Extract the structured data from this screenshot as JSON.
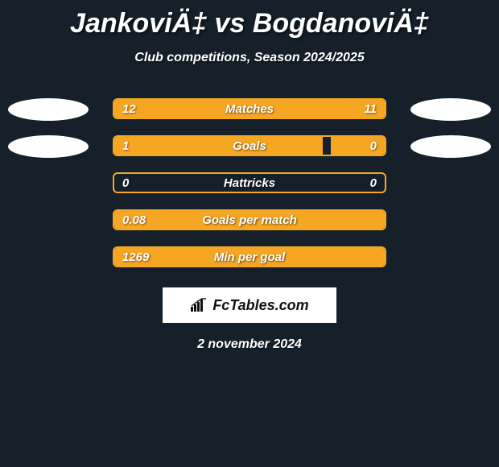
{
  "title": "JankoviÄ‡ vs BogdanoviÄ‡",
  "subtitle": "Club competitions, Season 2024/2025",
  "theme": {
    "background": "#15202b",
    "accent": "#f5a623",
    "text": "#ffffff",
    "ellipse": "#ffffff",
    "logo_bg": "#ffffff",
    "logo_fg": "#111111"
  },
  "bars": [
    {
      "metric": "Matches",
      "left_text": "12",
      "right_text": "11",
      "left_value": 12,
      "right_value": 11,
      "left_fill_pct": 52,
      "right_fill_pct": 48,
      "show_left_ellipse": true,
      "show_right_ellipse": true
    },
    {
      "metric": "Goals",
      "left_text": "1",
      "right_text": "0",
      "left_value": 1,
      "right_value": 0,
      "left_fill_pct": 77,
      "right_fill_pct": 20,
      "show_left_ellipse": true,
      "show_right_ellipse": true
    },
    {
      "metric": "Hattricks",
      "left_text": "0",
      "right_text": "0",
      "left_value": 0,
      "right_value": 0,
      "left_fill_pct": 0,
      "right_fill_pct": 0,
      "show_left_ellipse": false,
      "show_right_ellipse": false
    },
    {
      "metric": "Goals per match",
      "left_text": "0.08",
      "right_text": "",
      "left_value": 0.08,
      "right_value": null,
      "left_fill_pct": 100,
      "right_fill_pct": 0,
      "show_left_ellipse": false,
      "show_right_ellipse": false
    },
    {
      "metric": "Min per goal",
      "left_text": "1269",
      "right_text": "",
      "left_value": 1269,
      "right_value": null,
      "left_fill_pct": 100,
      "right_fill_pct": 0,
      "show_left_ellipse": false,
      "show_right_ellipse": false
    }
  ],
  "brand": {
    "text": "FcTables.com"
  },
  "date": "2 november 2024"
}
